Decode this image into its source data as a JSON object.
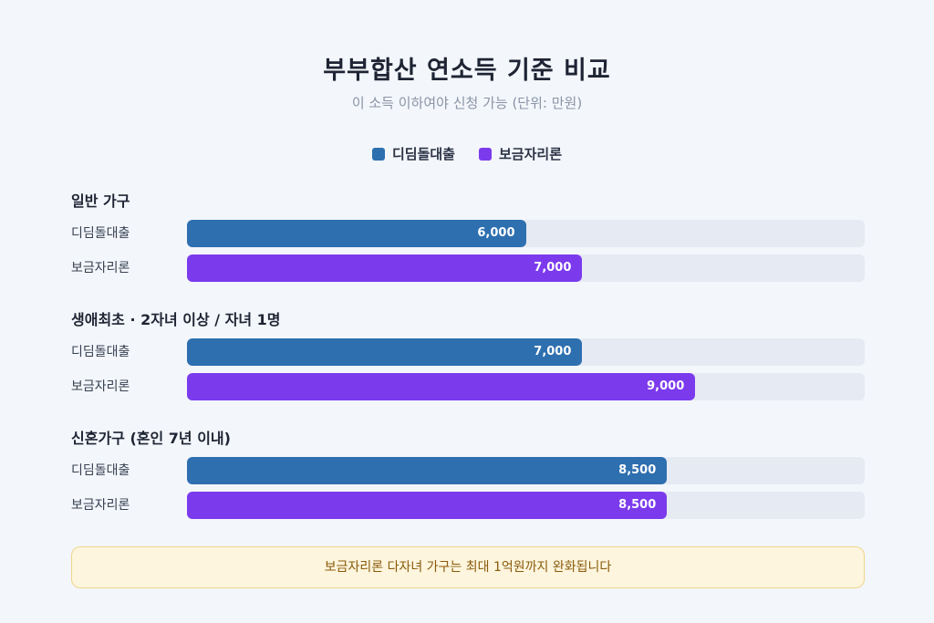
{
  "title": "부부합산 연소득 기준 비교",
  "subtitle": "이 소득 이하여야 신청 가능 (단위: 만원)",
  "note": "보금자리론 다자녀 가구는 최대 1억원까지 완화됩니다",
  "colors": {
    "series1": "#2e6fb0",
    "series2": "#7c3aed"
  },
  "chart_data": {
    "type": "bar",
    "orientation": "horizontal",
    "unit": "만원",
    "xlim": [
      0,
      12000
    ],
    "legend_position": "top-center",
    "series": [
      {
        "name": "디딤돌대출",
        "color": "#2e6fb0"
      },
      {
        "name": "보금자리론",
        "color": "#7c3aed"
      }
    ],
    "groups": [
      {
        "label": "일반 가구",
        "rows": [
          {
            "series": "디딤돌대출",
            "value": 6000,
            "display": "6,000"
          },
          {
            "series": "보금자리론",
            "value": 7000,
            "display": "7,000"
          }
        ]
      },
      {
        "label": "생애최초 · 2자녀 이상 / 자녀 1명",
        "rows": [
          {
            "series": "디딤돌대출",
            "value": 7000,
            "display": "7,000"
          },
          {
            "series": "보금자리론",
            "value": 9000,
            "display": "9,000"
          }
        ]
      },
      {
        "label": "신혼가구 (혼인 7년 이내)",
        "rows": [
          {
            "series": "디딤돌대출",
            "value": 8500,
            "display": "8,500"
          },
          {
            "series": "보금자리론",
            "value": 8500,
            "display": "8,500"
          }
        ]
      }
    ]
  }
}
